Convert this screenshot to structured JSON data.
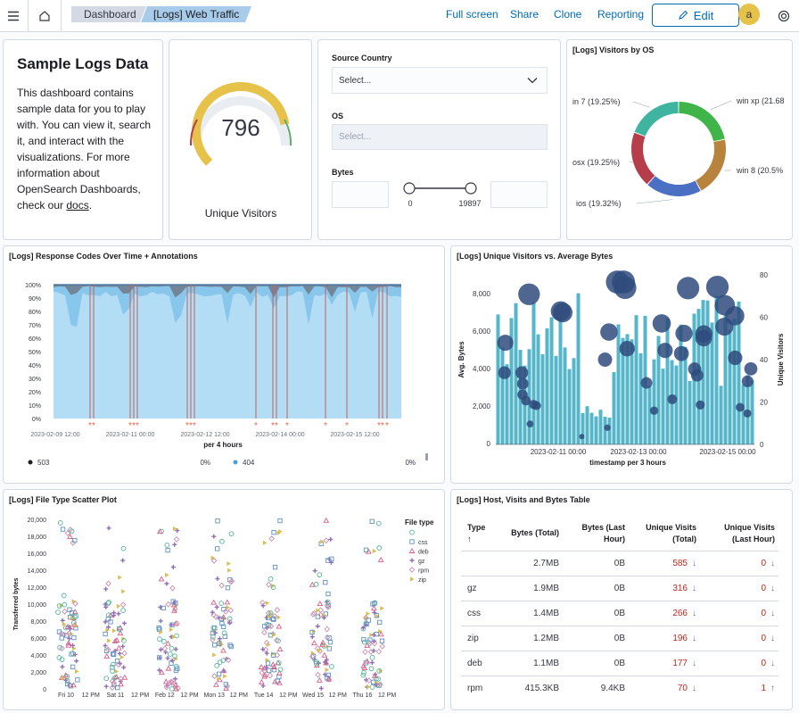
{
  "nav": {
    "breadcrumbs": [
      "Dashboard",
      "[Logs] Web Traffic"
    ],
    "links": [
      "Full screen",
      "Share",
      "Clone",
      "Reporting"
    ],
    "edit_label": "Edit",
    "avatar_initial": "a"
  },
  "markdown": {
    "title": "Sample Logs Data",
    "body": "This dashboard contains sample data for you to play with. You can view it, search it, and interact with the visualizations. For more information about OpenSearch Dashboards, check our ",
    "link": "docs",
    "suffix": "."
  },
  "gauge": {
    "value": "796",
    "label": "Unique Visitors",
    "fraction": 0.8
  },
  "controls": {
    "source_country_label": "Source Country",
    "source_country_placeholder": "Select...",
    "os_label": "OS",
    "os_placeholder": "Select...",
    "bytes_label": "Bytes",
    "bytes_min": "0",
    "bytes_max": "19897"
  },
  "os_panel": {
    "title": "[Logs] Visitors by OS",
    "chart_data": {
      "type": "pie",
      "donut": true,
      "slices": [
        {
          "label": "win xp (21.68",
          "value": 21.68,
          "color": "#54b399"
        },
        {
          "label": "win 8 (20.5%",
          "value": 20.5,
          "color": "#d6bf57"
        },
        {
          "label": "ios (19.32%)",
          "value": 19.32,
          "color": "#d36086"
        },
        {
          "label": "osx (19.25%)",
          "value": 19.25,
          "color": "#9170b8"
        },
        {
          "label": "in 7 (19.25%)",
          "value": 19.25,
          "color": "#6092c0"
        }
      ],
      "colors_in_order": [
        "#3fb549",
        "#b8833c",
        "#4b6fc2",
        "#b63d4a",
        "#3fb5a1"
      ]
    }
  },
  "response_panel": {
    "title": "[Logs] Response Codes Over Time + Annotations",
    "chart_data": {
      "type": "area",
      "stacked_percent": true,
      "y_ticks": [
        "100%",
        "90%",
        "80%",
        "70%",
        "60%",
        "50%",
        "40%",
        "30%",
        "20%",
        "10%",
        "0%"
      ],
      "x_ticks": [
        "2023-02-09 12:00",
        "2023-02-11 00:00",
        "2023-02-12 12:00",
        "2023-02-14 00:00",
        "2023-02-15 12:00"
      ],
      "xlabel": "per 4 hours",
      "series": [
        {
          "name": "503",
          "color": "#1d1e24"
        },
        {
          "name": "404",
          "color": "#4c9ed8"
        }
      ],
      "annotation_marker": "*"
    },
    "legend": [
      {
        "name": "503",
        "value": "0%",
        "color": "#1d1e24"
      },
      {
        "name": "404",
        "value": "0%",
        "color": "#4c9ed8"
      }
    ]
  },
  "visitors_panel": {
    "title": "[Logs] Unique Visitors vs. Average Bytes",
    "chart_data": {
      "type": "bar",
      "left_axis": {
        "label": "Avg. Bytes",
        "ticks": [
          "8,000",
          "6,000",
          "4,000",
          "2,000",
          "0"
        ]
      },
      "right_axis": {
        "label": "Unique Visitors",
        "ticks": [
          "80",
          "60",
          "40",
          "20",
          "0"
        ]
      },
      "x_ticks": [
        "2023-02-11 00:00",
        "2023-02-13 00:00",
        "2023-02-15 00:00"
      ],
      "xlabel": "timestamp per 3 hours",
      "bar_color": "#54b6c8",
      "bubble_color": "#2f4b7c"
    }
  },
  "scatter_panel": {
    "title": "[Logs] File Type Scatter Plot",
    "chart_data": {
      "type": "scatter",
      "ylabel": "Transferred bytes",
      "y_ticks": [
        "20,000",
        "18,000",
        "16,000",
        "14,000",
        "12,000",
        "10,000",
        "8,000",
        "6,000",
        "4,000",
        "2,000",
        "0"
      ],
      "x_ticks": [
        "Fri 10",
        "12 PM",
        "Sat 11",
        "12 PM",
        "Feb 12",
        "12 PM",
        "Mon 13",
        "12 PM",
        "Tue 14",
        "12 PM",
        "Wed 15",
        "12 PM",
        "Thu 16",
        "12 PM"
      ],
      "legend_title": "File type",
      "series": [
        {
          "name": "",
          "shape": "circle",
          "color": "#54b399"
        },
        {
          "name": "css",
          "shape": "square",
          "color": "#6092c0"
        },
        {
          "name": "deb",
          "shape": "triangle",
          "color": "#d36086"
        },
        {
          "name": "gz",
          "shape": "cross",
          "color": "#9170b8"
        },
        {
          "name": "rpm",
          "shape": "diamond",
          "color": "#ca8eae"
        },
        {
          "name": "zip",
          "shape": "triangle-right",
          "color": "#d6bf57"
        }
      ]
    }
  },
  "table_panel": {
    "title": "[Logs] Host, Visits and Bytes Table",
    "headers": [
      "Type",
      "Bytes (Total)",
      "Bytes (Last Hour)",
      "Unique Visits (Total)",
      "Unique Visits (Last Hour)"
    ],
    "rows": [
      [
        "",
        "2.7MB",
        "0B",
        "585",
        "0"
      ],
      [
        "gz",
        "1.9MB",
        "0B",
        "316",
        "0"
      ],
      [
        "css",
        "1.4MB",
        "0B",
        "266",
        "0"
      ],
      [
        "zip",
        "1.2MB",
        "0B",
        "196",
        "0"
      ],
      [
        "deb",
        "1.1MB",
        "0B",
        "177",
        "0"
      ],
      [
        "rpm",
        "415.3KB",
        "9.4KB",
        "70",
        "1"
      ]
    ]
  }
}
